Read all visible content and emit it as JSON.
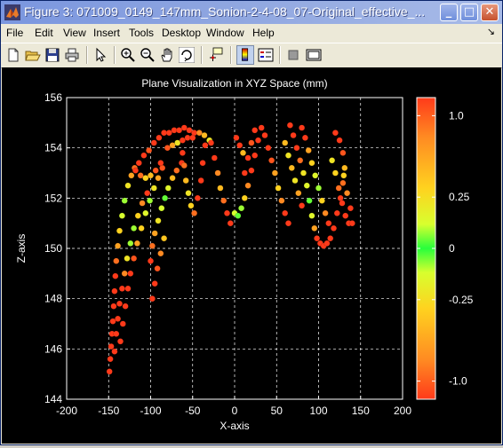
{
  "window": {
    "title": "Figure 3: 071009_0149_147mm_Sonion-2-4-08_07-Original_effective_...",
    "buttons": {
      "minimize": "_",
      "maximize": "□",
      "close": "✕"
    }
  },
  "menu": {
    "items": [
      "File",
      "Edit",
      "View",
      "Insert",
      "Tools",
      "Desktop",
      "Window",
      "Help"
    ],
    "overflow_arrow": "↘"
  },
  "toolbar": {
    "tools": [
      "new-figure",
      "open-file",
      "save",
      "print",
      "edit-plot",
      "zoom-in",
      "zoom-out",
      "pan",
      "rotate-3d",
      "data-cursor",
      "insert-colorbar",
      "insert-legend",
      "hide-plot-tools",
      "show-plot-tools"
    ]
  },
  "chart_data": {
    "type": "scatter",
    "title": "Plane Visualization in XYZ Space (mm)",
    "xlabel": "X-axis",
    "ylabel": "Z-axis",
    "xlim": [
      -200,
      200
    ],
    "ylim": [
      144,
      156
    ],
    "xticks": [
      -200,
      -150,
      -100,
      -50,
      0,
      50,
      100,
      150,
      200
    ],
    "yticks": [
      144,
      146,
      148,
      150,
      152,
      154,
      156
    ],
    "grid": true,
    "background": "#000000",
    "axes_color": "#ffffff",
    "colorbar": {
      "ticks": [
        1.0,
        0.25,
        0,
        -0.25,
        -1.0
      ],
      "tick_labels": [
        "1.0",
        "0.25",
        "0",
        "-0.25",
        "-1.0"
      ],
      "colors": [
        "#ff3a1a",
        "#ff8a22",
        "#ffd21f",
        "#d8ff2e",
        "#28ff3c",
        "#d8ff2e",
        "#ffd21f",
        "#ff8a22",
        "#ff3a1a"
      ]
    },
    "points": [
      [
        -149,
        145.1,
        1
      ],
      [
        -148,
        145.6,
        1
      ],
      [
        -147,
        146.1,
        1
      ],
      [
        -146,
        146.6,
        1
      ],
      [
        -145,
        147.1,
        1
      ],
      [
        -144,
        147.7,
        1
      ],
      [
        -143,
        148.3,
        1
      ],
      [
        -142,
        148.9,
        1
      ],
      [
        -141,
        149.5,
        0.8
      ],
      [
        -139,
        150.1,
        0.6
      ],
      [
        -137,
        150.7,
        0.4
      ],
      [
        -134,
        151.3,
        0.15
      ],
      [
        -131,
        151.9,
        -0.1
      ],
      [
        -127,
        152.5,
        -0.3
      ],
      [
        -123,
        152.9,
        -0.6
      ],
      [
        -119,
        153.2,
        -0.8
      ],
      [
        -114,
        153.4,
        -1
      ],
      [
        -108,
        153.7,
        -1
      ],
      [
        -102,
        153.9,
        -0.9
      ],
      [
        -96,
        154.2,
        -1
      ],
      [
        -90,
        154.4,
        1
      ],
      [
        -84,
        154.6,
        1
      ],
      [
        -78,
        154.6,
        1
      ],
      [
        -72,
        154.7,
        1
      ],
      [
        -66,
        154.7,
        1
      ],
      [
        -60,
        154.8,
        -1
      ],
      [
        -54,
        154.7,
        1
      ],
      [
        -48,
        154.6,
        1
      ],
      [
        -42,
        154.6,
        -0.7
      ],
      [
        -36,
        154.5,
        0.5
      ],
      [
        -30,
        154.3,
        -0.3
      ],
      [
        -143,
        145.9,
        1
      ],
      [
        -141,
        146.6,
        1
      ],
      [
        -139,
        147.2,
        1
      ],
      [
        -137,
        147.8,
        1
      ],
      [
        -134,
        148.4,
        1
      ],
      [
        -131,
        149.0,
        0.7
      ],
      [
        -128,
        149.6,
        0.3
      ],
      [
        -124,
        150.2,
        0.1
      ],
      [
        -120,
        150.8,
        -0.1
      ],
      [
        -115,
        151.3,
        -0.4
      ],
      [
        -110,
        151.8,
        -0.7
      ],
      [
        -104,
        152.2,
        -1
      ],
      [
        -136,
        146.3,
        1
      ],
      [
        -133,
        147.0,
        1
      ],
      [
        -130,
        147.7,
        1
      ],
      [
        -127,
        148.4,
        1
      ],
      [
        -124,
        149.0,
        1
      ],
      [
        -120,
        149.6,
        0.9
      ],
      [
        -116,
        150.2,
        0.6
      ],
      [
        -111,
        150.8,
        0.4
      ],
      [
        -106,
        151.4,
        0.2
      ],
      [
        -101,
        151.9,
        0.1
      ],
      [
        -96,
        152.4,
        -0.3
      ],
      [
        -91,
        152.8,
        -0.6
      ],
      [
        -86,
        153.2,
        -0.9
      ],
      [
        -100,
        149.5,
        1
      ],
      [
        -98,
        150.1,
        0.8
      ],
      [
        -95,
        150.6,
        0.6
      ],
      [
        -91,
        151.1,
        0.3
      ],
      [
        -87,
        151.6,
        0.15
      ],
      [
        -83,
        152.0,
        0.05
      ],
      [
        -79,
        152.4,
        -0.2
      ],
      [
        -74,
        152.8,
        -0.5
      ],
      [
        -69,
        153.1,
        -0.8
      ],
      [
        -63,
        153.4,
        -1
      ],
      [
        -98,
        148.0,
        1
      ],
      [
        -95,
        148.6,
        1
      ],
      [
        -92,
        149.2,
        0.9
      ],
      [
        -88,
        149.8,
        0.7
      ],
      [
        -84,
        150.4,
        0.45
      ],
      [
        -62,
        153.8,
        -1
      ],
      [
        -60,
        153.3,
        -0.8
      ],
      [
        -58,
        152.7,
        0.5
      ],
      [
        -55,
        152.2,
        0.3
      ],
      [
        -52,
        151.7,
        -0.4
      ],
      [
        -48,
        151.4,
        -0.8
      ],
      [
        -44,
        152.0,
        1
      ],
      [
        -40,
        152.7,
        1
      ],
      [
        -38,
        153.4,
        -1
      ],
      [
        -35,
        154.1,
        1
      ],
      [
        -28,
        154.2,
        1
      ],
      [
        -24,
        153.6,
        1
      ],
      [
        -20,
        153.0,
        0.7
      ],
      [
        -17,
        152.4,
        -0.5
      ],
      [
        -13,
        151.9,
        -0.8
      ],
      [
        -9,
        151.4,
        1
      ],
      [
        -5,
        151.0,
        1
      ],
      [
        0,
        151.4,
        0.15
      ],
      [
        4,
        151.3,
        0.05
      ],
      [
        8,
        151.6,
        0.1
      ],
      [
        12,
        152.0,
        0.4
      ],
      [
        16,
        152.5,
        0.7
      ],
      [
        20,
        153.1,
        1
      ],
      [
        24,
        153.7,
        -1
      ],
      [
        28,
        154.3,
        1
      ],
      [
        32,
        154.8,
        1
      ],
      [
        36,
        154.5,
        -1
      ],
      [
        40,
        154.0,
        1
      ],
      [
        44,
        153.5,
        -0.9
      ],
      [
        48,
        153.0,
        -0.6
      ],
      [
        52,
        152.4,
        -0.4
      ],
      [
        56,
        151.9,
        -0.7
      ],
      [
        60,
        151.4,
        1
      ],
      [
        64,
        151.0,
        1
      ],
      [
        12,
        153.0,
        1
      ],
      [
        16,
        153.6,
        1
      ],
      [
        20,
        154.2,
        0.9
      ],
      [
        24,
        154.7,
        1
      ],
      [
        2,
        154.4,
        1
      ],
      [
        6,
        154.1,
        1
      ],
      [
        10,
        153.8,
        -0.5
      ],
      [
        66,
        154.9,
        1
      ],
      [
        70,
        154.5,
        1
      ],
      [
        74,
        154.0,
        -1
      ],
      [
        78,
        153.5,
        -0.8
      ],
      [
        82,
        153.0,
        0.3
      ],
      [
        86,
        152.5,
        0.2
      ],
      [
        89,
        151.9,
        0.05
      ],
      [
        92,
        151.3,
        -0.2
      ],
      [
        95,
        150.8,
        -0.6
      ],
      [
        98,
        150.4,
        1
      ],
      [
        102,
        150.2,
        1
      ],
      [
        106,
        150.1,
        1
      ],
      [
        110,
        150.2,
        1
      ],
      [
        114,
        150.4,
        1
      ],
      [
        118,
        150.8,
        1
      ],
      [
        122,
        151.4,
        1
      ],
      [
        126,
        152.0,
        -1
      ],
      [
        129,
        152.6,
        -0.8
      ],
      [
        131,
        153.2,
        -0.5
      ],
      [
        129,
        153.8,
        -0.9
      ],
      [
        125,
        154.3,
        1
      ],
      [
        120,
        154.6,
        1
      ],
      [
        80,
        154.8,
        1
      ],
      [
        84,
        154.4,
        -1
      ],
      [
        88,
        153.9,
        -0.6
      ],
      [
        92,
        153.4,
        0.4
      ],
      [
        96,
        152.9,
        0.2
      ],
      [
        100,
        152.4,
        0.1
      ],
      [
        104,
        151.9,
        -0.4
      ],
      [
        108,
        151.4,
        -0.7
      ],
      [
        112,
        151.0,
        1
      ],
      [
        116,
        153.5,
        0.3
      ],
      [
        120,
        153.0,
        -0.4
      ],
      [
        124,
        152.4,
        -0.8
      ],
      [
        128,
        151.8,
        1
      ],
      [
        132,
        151.3,
        1
      ],
      [
        136,
        151.0,
        1
      ],
      [
        140,
        151.0,
        1
      ],
      [
        138,
        151.6,
        -1
      ],
      [
        134,
        152.2,
        -0.7
      ],
      [
        130,
        152.9,
        -0.4
      ],
      [
        60,
        154.2,
        -0.5
      ],
      [
        64,
        153.7,
        0.3
      ],
      [
        68,
        153.2,
        0.5
      ],
      [
        72,
        152.7,
        -0.3
      ],
      [
        76,
        152.2,
        -0.6
      ],
      [
        80,
        151.7,
        1
      ],
      [
        -80,
        154.0,
        -0.9
      ],
      [
        -74,
        154.1,
        -0.6
      ],
      [
        -68,
        154.2,
        -0.3
      ],
      [
        -62,
        154.3,
        1
      ],
      [
        -56,
        154.4,
        -1
      ],
      [
        -50,
        154.4,
        1
      ],
      [
        -118,
        153.1,
        1
      ],
      [
        -112,
        152.9,
        -0.8
      ],
      [
        -106,
        152.8,
        0.4
      ],
      [
        -100,
        152.9,
        -0.5
      ],
      [
        -94,
        153.1,
        -0.9
      ],
      [
        -88,
        153.4,
        1
      ]
    ]
  }
}
